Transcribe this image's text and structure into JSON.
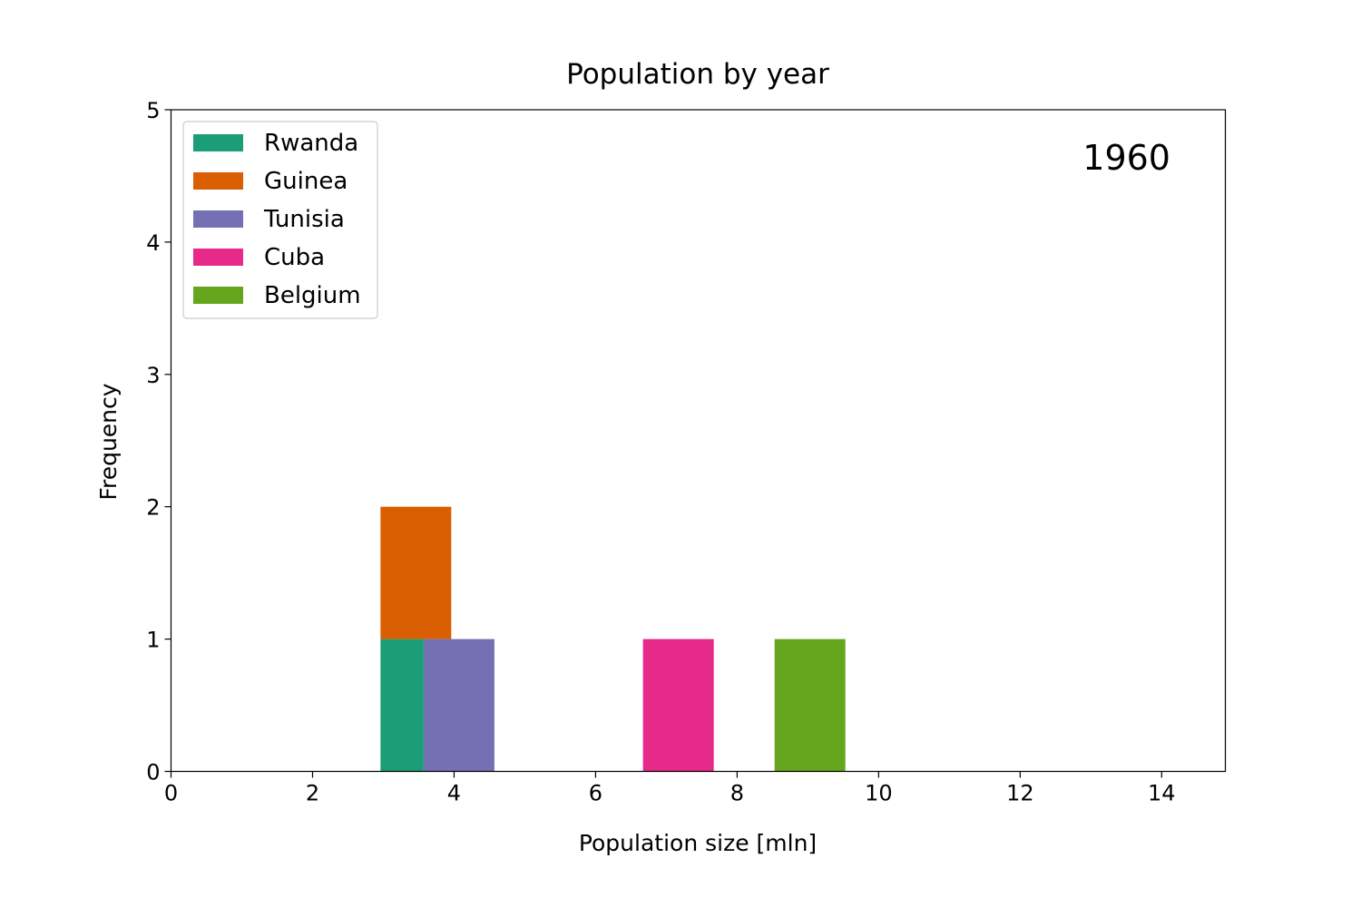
{
  "chart_data": {
    "type": "bar",
    "title": "Population by year",
    "xlabel": "Population size [mln]",
    "ylabel": "Frequency",
    "annotation": "1960",
    "xlim": [
      0,
      14.9
    ],
    "ylim": [
      0,
      5
    ],
    "x_ticks": [
      "0",
      "2",
      "4",
      "6",
      "8",
      "10",
      "12",
      "14"
    ],
    "y_ticks": [
      "0",
      "1",
      "2",
      "3",
      "4",
      "5"
    ],
    "grid": false,
    "stacked": true,
    "legend_position": "upper-left",
    "series": [
      {
        "name": "Rwanda",
        "color": "#1b9e77",
        "bins": [
          {
            "x0": 2.96,
            "x1": 3.57,
            "y0": 0,
            "y1": 1
          }
        ]
      },
      {
        "name": "Guinea",
        "color": "#d95f02",
        "bins": [
          {
            "x0": 2.96,
            "x1": 3.96,
            "y0": 1,
            "y1": 2
          }
        ]
      },
      {
        "name": "Tunisia",
        "color": "#7570b3",
        "bins": [
          {
            "x0": 3.57,
            "x1": 4.57,
            "y0": 0,
            "y1": 1
          }
        ]
      },
      {
        "name": "Cuba",
        "color": "#e7298a",
        "bins": [
          {
            "x0": 6.67,
            "x1": 7.67,
            "y0": 0,
            "y1": 1
          }
        ]
      },
      {
        "name": "Belgium",
        "color": "#66a61e",
        "bins": [
          {
            "x0": 8.53,
            "x1": 9.53,
            "y0": 0,
            "y1": 1
          }
        ]
      }
    ]
  }
}
